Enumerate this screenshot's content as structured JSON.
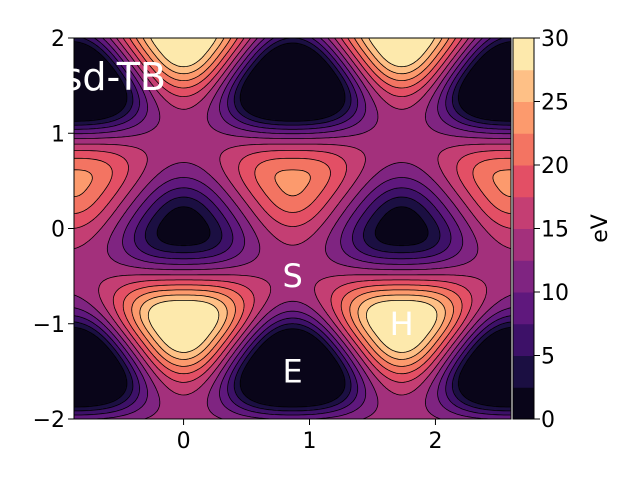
{
  "chart_data": {
    "type": "heatmap",
    "subtype": "filled-contour",
    "colormap": "magma",
    "xlim": [
      -0.87,
      2.6
    ],
    "ylim": [
      -2,
      2
    ],
    "x_ticks": [
      0,
      1,
      2
    ],
    "x_tick_labels": [
      "0",
      "1",
      "2"
    ],
    "y_ticks": [
      -2,
      -1,
      0,
      1,
      2
    ],
    "y_tick_labels": [
      "−2",
      "−1",
      "0",
      "1",
      "2"
    ],
    "levels": [
      0,
      2.5,
      5,
      7.5,
      10,
      12.5,
      15,
      17.5,
      20,
      22.5,
      25,
      27.5,
      30
    ],
    "colorbar": {
      "label": "eV",
      "range": [
        0,
        30
      ],
      "ticks": [
        0,
        5,
        10,
        15,
        20,
        25,
        30
      ],
      "tick_labels": [
        "0",
        "5",
        "10",
        "15",
        "20",
        "25",
        "30"
      ]
    },
    "minima_positions": [
      [
        0,
        0
      ],
      [
        1.732,
        0
      ],
      [
        0.866,
        -1.5
      ],
      [
        -0.866,
        -1.5
      ],
      [
        2.598,
        -1.5
      ],
      [
        0.866,
        1.5
      ],
      [
        -0.866,
        1.5
      ],
      [
        2.598,
        1.5
      ]
    ],
    "maxima_positions": [
      [
        0.866,
        0.5
      ],
      [
        1.732,
        -1
      ],
      [
        0,
        -1
      ],
      [
        -0.866,
        0.5
      ],
      [
        2.598,
        0.5
      ],
      [
        0,
        2
      ],
      [
        1.732,
        2
      ]
    ],
    "annotations": [
      {
        "text": "sd-TB",
        "x": -0.55,
        "y": 1.6
      },
      {
        "text": "S",
        "x": 0.866,
        "y": -0.5
      },
      {
        "text": "H",
        "x": 1.732,
        "y": -1.0
      },
      {
        "text": "E",
        "x": 0.866,
        "y": -1.5
      }
    ]
  },
  "colors": {
    "minimum": "#000004",
    "maximum": "#fcfdbf",
    "contour_line": "#000000"
  }
}
